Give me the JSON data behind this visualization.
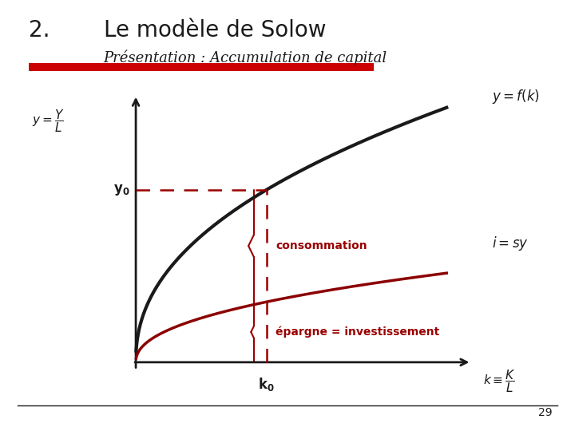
{
  "title_number": "2.",
  "title_main": "Le modèle de Solow",
  "subtitle": "Présentation : Accumulation de capital",
  "bg_color": "#ffffff",
  "dark_red": "#8B0000",
  "black_color": "#1a1a1a",
  "accent_red": "#990000",
  "header_bar_color": "#CC0000",
  "k0": 0.42,
  "x_max": 1.0,
  "y_max": 1.0,
  "savings_rate": 0.35,
  "alpha": 0.45,
  "page_number": "29",
  "consommation_text": "consommation",
  "epargne_text": "épargne = investissement"
}
